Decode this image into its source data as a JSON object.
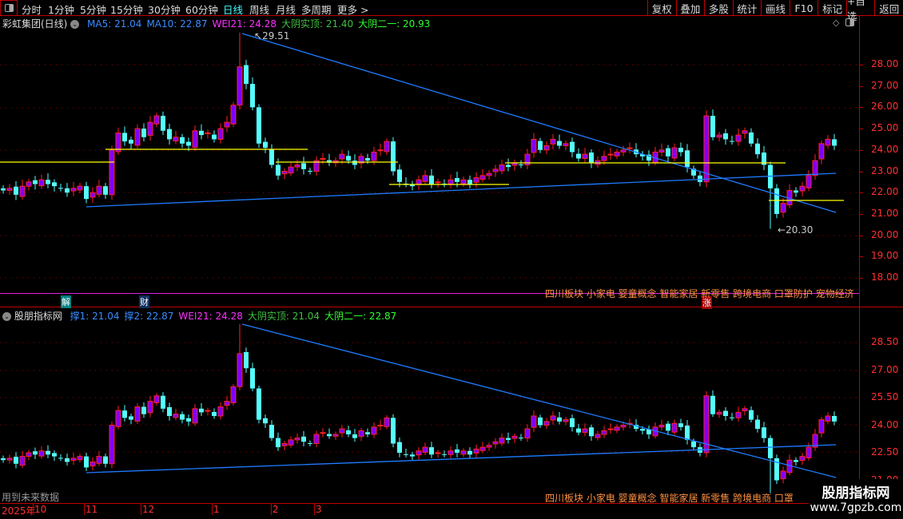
{
  "toolbar": {
    "periods": [
      "分时",
      "1分钟",
      "5分钟",
      "15分钟",
      "30分钟",
      "60分钟",
      "日线",
      "周线",
      "月线",
      "多周期",
      "更多 >"
    ],
    "active_period": "日线",
    "buttons": [
      "复权",
      "叠加",
      "多股",
      "统计",
      "画线",
      "F10",
      "标记",
      "+自选",
      "返回"
    ]
  },
  "main_pane": {
    "title": "彩虹集团(日线)",
    "indicators": [
      {
        "label": "MA5: 21.04",
        "color": "#3a8cff"
      },
      {
        "label": "MA10: 22.87",
        "color": "#3a8cff"
      },
      {
        "label": "WEI21: 24.28",
        "color": "#ff30ff"
      },
      {
        "label": "大阴实顶: 21.40",
        "color": "#40c040"
      },
      {
        "label": "大阴二一: 20.93",
        "color": "#30ff30"
      }
    ],
    "high_marker": "29.51",
    "low_marker": "20.30",
    "y_ticks": [
      "28.00",
      "27.00",
      "26.00",
      "25.00",
      "24.00",
      "23.00",
      "22.00",
      "21.00",
      "20.00",
      "19.00",
      "18.00"
    ],
    "event_badges": [
      {
        "text": "解",
        "color": "#008080"
      },
      {
        "text": "财",
        "color": "#103060"
      },
      {
        "text": "涨",
        "color": "#a00000"
      }
    ],
    "topics": "四川板块 小家电 婴童概念 智能家居 新零售 跨境电商 口罩防护 宠物经济"
  },
  "sub_pane": {
    "title": "股朋指标网",
    "indicators": [
      {
        "label": "撑1: 21.04",
        "color": "#3a8cff"
      },
      {
        "label": "撑2: 22.87",
        "color": "#3a8cff"
      },
      {
        "label": "WEI21: 24.28",
        "color": "#ff30ff"
      },
      {
        "label": "大阴实顶: 21.04",
        "color": "#40c040"
      },
      {
        "label": "大阴二一: 22.87",
        "color": "#30ff30"
      }
    ],
    "y_ticks": [
      "28.50",
      "27.00",
      "25.50",
      "24.00",
      "22.50",
      "21.00"
    ],
    "note": "用到未来数据",
    "topics": "四川板块 小家电 婴童概念 智能家居 新零售 跨境电商 口罩"
  },
  "date_axis": [
    "2025年",
    "10",
    "11",
    "12",
    "1",
    "2",
    "3"
  ],
  "watermark": {
    "name": "股朋指标网",
    "url": "www.7gpzb.com"
  },
  "chart_data": {
    "type": "candlestick",
    "closes": [
      22.1,
      22.2,
      21.9,
      22.3,
      22.5,
      22.4,
      22.6,
      22.4,
      22.3,
      22.2,
      22.0,
      22.2,
      22.3,
      21.7,
      22.0,
      22.3,
      21.9,
      24.0,
      24.8,
      24.4,
      24.3,
      25.0,
      24.6,
      25.3,
      25.6,
      24.9,
      24.5,
      24.6,
      24.3,
      24.2,
      24.9,
      24.7,
      24.8,
      24.5,
      25.0,
      25.3,
      26.1,
      27.9,
      27.1,
      26.0,
      24.3,
      24.1,
      23.3,
      22.8,
      23.0,
      23.2,
      23.3,
      23.1,
      23.0,
      23.5,
      23.6,
      23.4,
      23.5,
      23.8,
      23.5,
      23.3,
      23.7,
      23.5,
      23.9,
      24.0,
      24.4,
      23.0,
      22.5,
      22.4,
      22.3,
      22.6,
      22.8,
      22.4,
      22.5,
      22.4,
      22.6,
      22.5,
      22.6,
      22.4,
      22.7,
      22.8,
      22.9,
      23.1,
      23.3,
      23.2,
      23.4,
      23.3,
      23.8,
      24.5,
      24.0,
      24.2,
      24.5,
      24.2,
      24.3,
      23.9,
      23.6,
      23.8,
      23.4,
      23.5,
      23.7,
      23.8,
      23.9,
      24.0,
      24.1,
      23.8,
      23.7,
      23.5,
      23.9,
      24.0,
      23.7,
      24.1,
      23.9,
      23.2,
      22.8,
      22.5,
      25.6,
      24.6,
      24.7,
      24.5,
      24.4,
      24.7,
      24.9,
      24.3,
      23.8,
      23.3,
      22.2,
      21.0,
      21.5,
      22.1,
      22.0,
      22.3,
      22.8,
      23.5,
      24.3,
      24.5,
      24.2
    ],
    "main_ylim": [
      17.2,
      29.6
    ],
    "sub_ylim": [
      20.9,
      29.1
    ],
    "colors": {
      "up_fill": "#8000ff",
      "up_border": "#ff2020",
      "down": "#55ffff",
      "trend": "#1e7cff",
      "level": "#ffff00"
    }
  }
}
